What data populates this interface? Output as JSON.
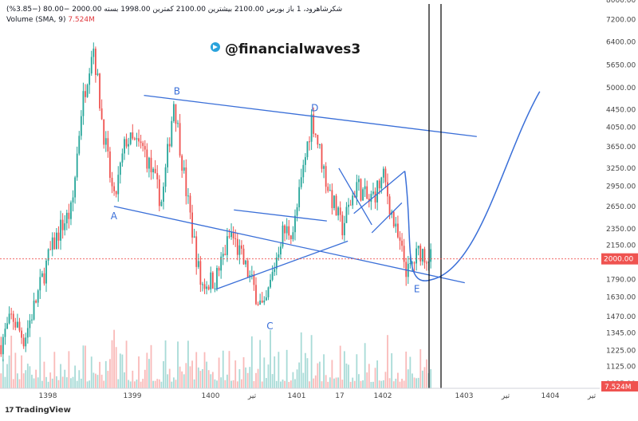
{
  "header": {
    "line1_symbol": "شکرشاهرود، 1",
    "line1_main": "باز بورس 2100.00 بیشترین 2100.00 کمترین 1998.00 بسته 2000.00 −80.00 (−3.85%)",
    "line1_change": "",
    "volume_label": "Volume",
    "volume_sma": "(SMA, 9)",
    "volume_value": "7.524M"
  },
  "watermark": {
    "text": "@financialwaves3",
    "icon": "telegram-icon"
  },
  "footer": {
    "logo": "17",
    "text": "TradingView"
  },
  "colors": {
    "up": "#26a69a",
    "down": "#ef5350",
    "pattern": "#3a6fd8",
    "price_tag": "#ef5350",
    "volume_tag": "#ef5350"
  },
  "chart_data": {
    "type": "candlestick",
    "scale": "log",
    "ylim": [
      1000,
      8000
    ],
    "y_ticks": [
      "8000.00",
      "7200.00",
      "6400.00",
      "5650.00",
      "5000.00",
      "4450.00",
      "4050.00",
      "3650.00",
      "3250.00",
      "2950.00",
      "2650.00",
      "2350.00",
      "2150.00",
      "1790.00",
      "1630.00",
      "1470.00",
      "1345.00",
      "1225.00",
      "1125.00",
      "1025.00"
    ],
    "x_ticks": [
      "1398",
      "1399",
      "1400",
      "تیر",
      "1401",
      "17",
      "1402",
      "1403",
      "تیر",
      "1404",
      "تیر"
    ],
    "last_price_label": "2000.00",
    "last_volume_label": "7.524M",
    "price_path": [
      {
        "x": 0.0,
        "p": 1260
      },
      {
        "x": 0.02,
        "p": 1470
      },
      {
        "x": 0.04,
        "p": 1300
      },
      {
        "x": 0.06,
        "p": 1600
      },
      {
        "x": 0.08,
        "p": 2000
      },
      {
        "x": 0.1,
        "p": 2350
      },
      {
        "x": 0.12,
        "p": 2600
      },
      {
        "x": 0.135,
        "p": 4400
      },
      {
        "x": 0.155,
        "p": 6400
      },
      {
        "x": 0.17,
        "p": 4200
      },
      {
        "x": 0.19,
        "p": 2700
      },
      {
        "x": 0.21,
        "p": 3800
      },
      {
        "x": 0.24,
        "p": 3600
      },
      {
        "x": 0.27,
        "p": 2700
      },
      {
        "x": 0.29,
        "p": 4700
      },
      {
        "x": 0.31,
        "p": 2900
      },
      {
        "x": 0.335,
        "p": 1740
      },
      {
        "x": 0.36,
        "p": 1800
      },
      {
        "x": 0.385,
        "p": 2300
      },
      {
        "x": 0.41,
        "p": 1900
      },
      {
        "x": 0.44,
        "p": 1500
      },
      {
        "x": 0.47,
        "p": 2300
      },
      {
        "x": 0.49,
        "p": 2350
      },
      {
        "x": 0.52,
        "p": 4300
      },
      {
        "x": 0.545,
        "p": 3000
      },
      {
        "x": 0.57,
        "p": 2350
      },
      {
        "x": 0.595,
        "p": 3000
      },
      {
        "x": 0.615,
        "p": 2700
      },
      {
        "x": 0.64,
        "p": 3100
      },
      {
        "x": 0.66,
        "p": 2300
      },
      {
        "x": 0.68,
        "p": 1850
      },
      {
        "x": 0.7,
        "p": 2100
      },
      {
        "x": 0.72,
        "p": 2000
      }
    ],
    "annotations": [
      {
        "label": "A",
        "x": 0.19,
        "p": 2650
      },
      {
        "label": "B",
        "x": 0.295,
        "p": 4700
      },
      {
        "label": "C",
        "x": 0.45,
        "p": 1470
      },
      {
        "label": "D",
        "x": 0.525,
        "p": 4300
      },
      {
        "label": "E",
        "x": 0.695,
        "p": 1790
      }
    ]
  }
}
